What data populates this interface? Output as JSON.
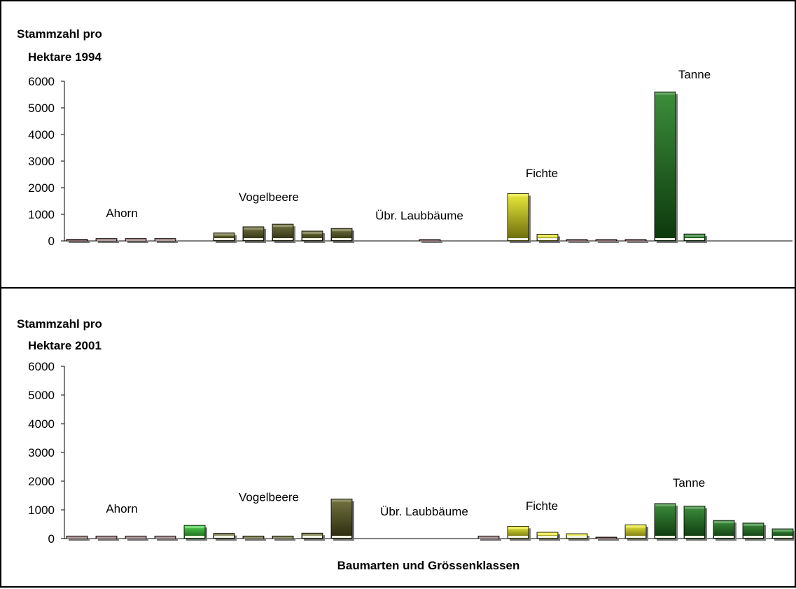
{
  "colors": {
    "ahorn": "#8a6868",
    "ahorn_green": "#33cc33",
    "vogelbeere": "#5a5a1e",
    "laubbaeume": "#4a1414",
    "fichte": "#e6e619",
    "tanne": "#1a7a1a",
    "tanne_dark": "#0a4a0a"
  },
  "xlabel": "Baumarten und Grössenklassen",
  "chart_data": [
    {
      "type": "bar",
      "title_line1": "Stammzahl pro",
      "title_line2": "Hektare 1994",
      "ylim": [
        0,
        6000
      ],
      "yticks": [
        "0",
        "1000",
        "2000",
        "3000",
        "4000",
        "5000",
        "6000"
      ],
      "groups": [
        {
          "label": "Ahorn",
          "label_y": 900
        },
        {
          "label": "Vogelbeere",
          "label_y": 1500
        },
        {
          "label": "Übr. Laubbäume",
          "label_y": 800
        },
        {
          "label": "Fichte",
          "label_y": 2400
        },
        {
          "label": "Tanne",
          "label_y": 6100
        }
      ],
      "bars": [
        {
          "slot": 1,
          "value": 60,
          "color": "laubbaeume"
        },
        {
          "slot": 2,
          "value": 90,
          "color": "ahorn"
        },
        {
          "slot": 3,
          "value": 90,
          "color": "ahorn"
        },
        {
          "slot": 4,
          "value": 90,
          "color": "ahorn"
        },
        {
          "slot": 6,
          "value": 300,
          "color": "vogelbeere"
        },
        {
          "slot": 7,
          "value": 530,
          "color": "vogelbeere"
        },
        {
          "slot": 8,
          "value": 630,
          "color": "vogelbeere"
        },
        {
          "slot": 9,
          "value": 370,
          "color": "vogelbeere"
        },
        {
          "slot": 10,
          "value": 470,
          "color": "vogelbeere"
        },
        {
          "slot": 13,
          "value": 50,
          "color": "laubbaeume"
        },
        {
          "slot": 16,
          "value": 1780,
          "color": "fichte"
        },
        {
          "slot": 17,
          "value": 250,
          "color": "fichte"
        },
        {
          "slot": 18,
          "value": 40,
          "color": "laubbaeume"
        },
        {
          "slot": 19,
          "value": 40,
          "color": "laubbaeume"
        },
        {
          "slot": 20,
          "value": 40,
          "color": "laubbaeume"
        },
        {
          "slot": 21,
          "value": 5600,
          "color": "tanne"
        },
        {
          "slot": 22,
          "value": 260,
          "color": "tanne"
        }
      ]
    },
    {
      "type": "bar",
      "title_line1": "Stammzahl pro",
      "title_line2": "Hektare 2001",
      "ylim": [
        0,
        6000
      ],
      "yticks": [
        "0",
        "1000",
        "2000",
        "3000",
        "4000",
        "5000",
        "6000"
      ],
      "groups": [
        {
          "label": "Ahorn",
          "label_y": 900
        },
        {
          "label": "Vogelbeere",
          "label_y": 1300
        },
        {
          "label": "Übr. Laubbäume",
          "label_y": 800
        },
        {
          "label": "Fichte",
          "label_y": 1000
        },
        {
          "label": "Tanne",
          "label_y": 1800
        }
      ],
      "bars": [
        {
          "slot": 1,
          "value": 90,
          "color": "ahorn"
        },
        {
          "slot": 2,
          "value": 90,
          "color": "ahorn"
        },
        {
          "slot": 3,
          "value": 90,
          "color": "ahorn"
        },
        {
          "slot": 4,
          "value": 90,
          "color": "ahorn"
        },
        {
          "slot": 5,
          "value": 460,
          "color": "ahorn_green"
        },
        {
          "slot": 6,
          "value": 180,
          "color": "vogelbeere"
        },
        {
          "slot": 7,
          "value": 90,
          "color": "vogelbeere"
        },
        {
          "slot": 8,
          "value": 90,
          "color": "vogelbeere"
        },
        {
          "slot": 9,
          "value": 190,
          "color": "vogelbeere"
        },
        {
          "slot": 10,
          "value": 1380,
          "color": "vogelbeere"
        },
        {
          "slot": 15,
          "value": 90,
          "color": "ahorn"
        },
        {
          "slot": 16,
          "value": 430,
          "color": "fichte"
        },
        {
          "slot": 17,
          "value": 220,
          "color": "fichte"
        },
        {
          "slot": 18,
          "value": 170,
          "color": "fichte"
        },
        {
          "slot": 19,
          "value": 50,
          "color": "laubbaeume"
        },
        {
          "slot": 20,
          "value": 480,
          "color": "fichte"
        },
        {
          "slot": 21,
          "value": 1220,
          "color": "tanne"
        },
        {
          "slot": 22,
          "value": 1130,
          "color": "tanne"
        },
        {
          "slot": 23,
          "value": 630,
          "color": "tanne"
        },
        {
          "slot": 24,
          "value": 540,
          "color": "tanne"
        },
        {
          "slot": 25,
          "value": 340,
          "color": "tanne"
        }
      ]
    }
  ]
}
